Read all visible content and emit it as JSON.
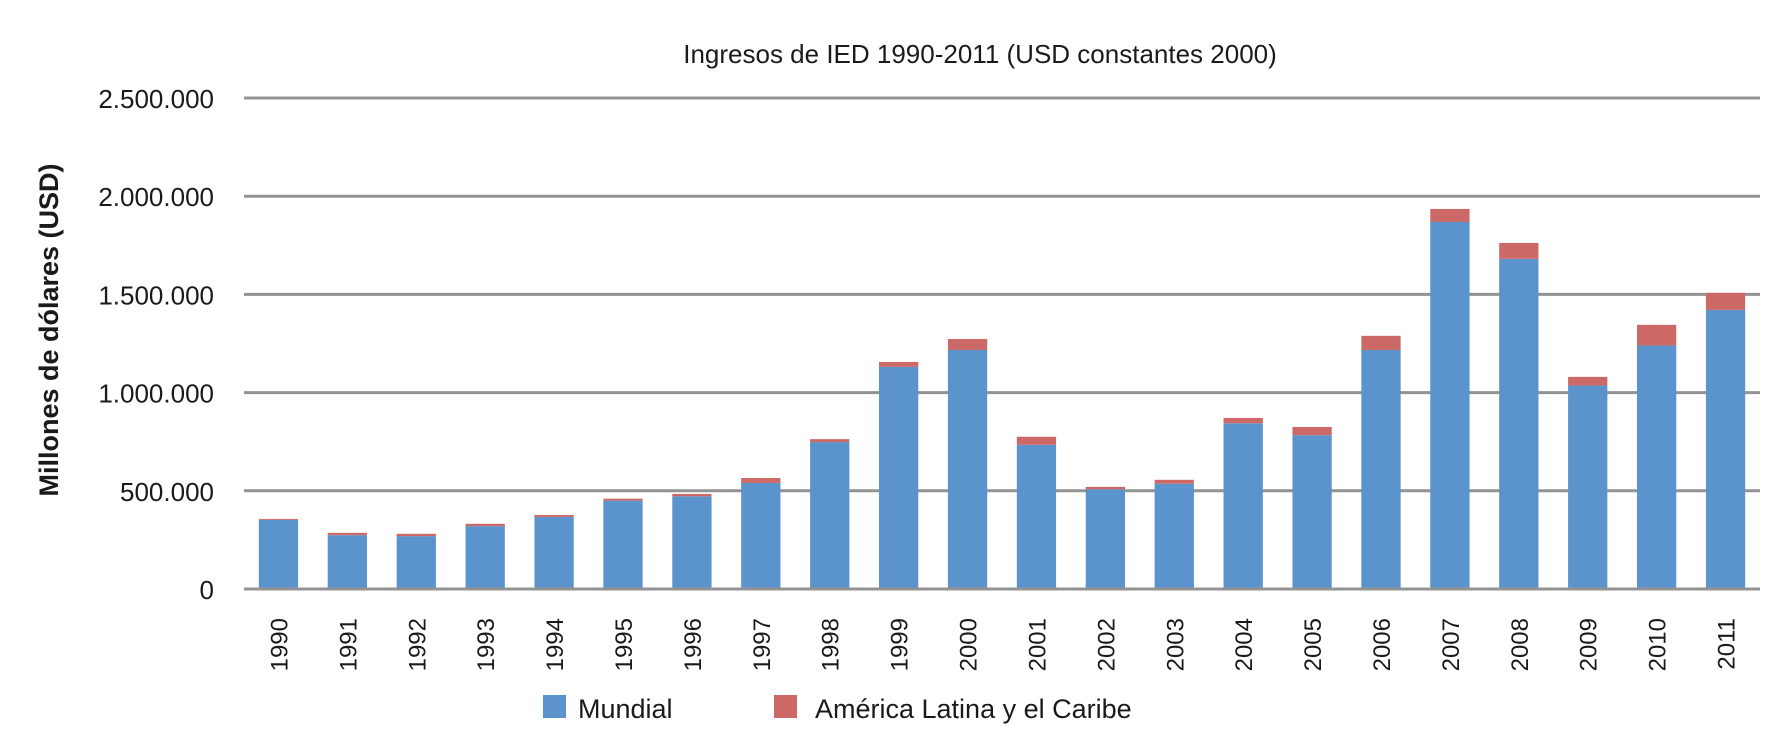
{
  "chart_data": {
    "type": "bar",
    "stacked": true,
    "title": "Ingresos de IED 1990-2011 (USD constantes 2000)",
    "xlabel": "",
    "ylabel": "Millones de dólares (USD)",
    "ylim": [
      0,
      2500000
    ],
    "yticks": [
      0,
      500000,
      1000000,
      1500000,
      2000000,
      2500000
    ],
    "ytick_labels": [
      "0",
      "500.000",
      "1.000.000",
      "1.500.000",
      "2.000.000",
      "2.500.000"
    ],
    "grid": true,
    "legend_position": "bottom",
    "categories": [
      "1990",
      "1991",
      "1992",
      "1993",
      "1994",
      "1995",
      "1996",
      "1997",
      "1998",
      "1999",
      "2000",
      "2001",
      "2002",
      "2003",
      "2004",
      "2005",
      "2006",
      "2007",
      "2008",
      "2009",
      "2010",
      "2011"
    ],
    "series": [
      {
        "name": "Mundial",
        "color": "#5b93cd",
        "values": [
          352000,
          274000,
          269000,
          320000,
          367000,
          450000,
          472000,
          540000,
          748000,
          1131000,
          1217000,
          734000,
          508000,
          536000,
          844000,
          783000,
          1217000,
          1869000,
          1681000,
          1036000,
          1240000,
          1421000
        ]
      },
      {
        "name": "América Latina y el Caribe",
        "color": "#cc6966",
        "values": [
          5000,
          12000,
          12000,
          12000,
          10000,
          10000,
          12000,
          25000,
          15000,
          25000,
          56000,
          41000,
          12000,
          20000,
          27000,
          42000,
          72000,
          66000,
          81000,
          44000,
          105000,
          87000
        ]
      }
    ]
  }
}
